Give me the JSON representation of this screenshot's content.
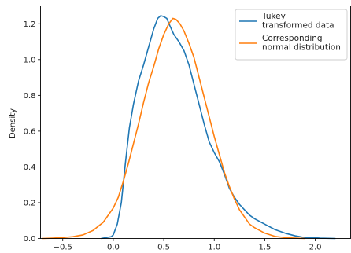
{
  "chart_data": {
    "type": "line",
    "title": "",
    "xlabel": "",
    "ylabel": "Density",
    "xlim": [
      -0.72,
      2.35
    ],
    "ylim": [
      0,
      1.3
    ],
    "xticks": [
      -0.5,
      0.0,
      0.5,
      1.0,
      1.5,
      2.0
    ],
    "xtick_labels": [
      "−0.5",
      "0.0",
      "0.5",
      "1.0",
      "1.5",
      "2.0"
    ],
    "yticks": [
      0.0,
      0.2,
      0.4,
      0.6,
      0.8,
      1.0,
      1.2
    ],
    "ytick_labels": [
      "0.0",
      "0.2",
      "0.4",
      "0.6",
      "0.8",
      "1.0",
      "1.2"
    ],
    "grid": false,
    "legend_position": "top-right",
    "series": [
      {
        "name": "Tukey\ntransformed data",
        "color": "#1f77b4",
        "points": [
          [
            -0.12,
            0.0
          ],
          [
            -0.02,
            0.01
          ],
          [
            0.0,
            0.02
          ],
          [
            0.04,
            0.08
          ],
          [
            0.08,
            0.2
          ],
          [
            0.12,
            0.42
          ],
          [
            0.16,
            0.62
          ],
          [
            0.2,
            0.75
          ],
          [
            0.25,
            0.88
          ],
          [
            0.3,
            0.97
          ],
          [
            0.35,
            1.07
          ],
          [
            0.4,
            1.17
          ],
          [
            0.44,
            1.23
          ],
          [
            0.47,
            1.245
          ],
          [
            0.5,
            1.24
          ],
          [
            0.53,
            1.23
          ],
          [
            0.56,
            1.19
          ],
          [
            0.6,
            1.14
          ],
          [
            0.65,
            1.1
          ],
          [
            0.7,
            1.05
          ],
          [
            0.75,
            0.97
          ],
          [
            0.8,
            0.86
          ],
          [
            0.85,
            0.75
          ],
          [
            0.9,
            0.64
          ],
          [
            0.95,
            0.54
          ],
          [
            1.0,
            0.48
          ],
          [
            1.05,
            0.43
          ],
          [
            1.1,
            0.36
          ],
          [
            1.15,
            0.28
          ],
          [
            1.2,
            0.23
          ],
          [
            1.25,
            0.19
          ],
          [
            1.3,
            0.16
          ],
          [
            1.35,
            0.13
          ],
          [
            1.4,
            0.11
          ],
          [
            1.5,
            0.08
          ],
          [
            1.6,
            0.05
          ],
          [
            1.7,
            0.03
          ],
          [
            1.8,
            0.015
          ],
          [
            1.9,
            0.005
          ],
          [
            2.0,
            0.004
          ],
          [
            2.05,
            0.002
          ],
          [
            2.2,
            0.0
          ]
        ]
      },
      {
        "name": "Corresponding\nnormal distribution",
        "color": "#ff7f0e",
        "points": [
          [
            -0.7,
            0.0
          ],
          [
            -0.6,
            0.002
          ],
          [
            -0.5,
            0.005
          ],
          [
            -0.4,
            0.01
          ],
          [
            -0.3,
            0.02
          ],
          [
            -0.2,
            0.045
          ],
          [
            -0.1,
            0.09
          ],
          [
            0.0,
            0.17
          ],
          [
            0.05,
            0.23
          ],
          [
            0.1,
            0.32
          ],
          [
            0.15,
            0.42
          ],
          [
            0.2,
            0.53
          ],
          [
            0.25,
            0.64
          ],
          [
            0.3,
            0.76
          ],
          [
            0.35,
            0.87
          ],
          [
            0.4,
            0.96
          ],
          [
            0.45,
            1.06
          ],
          [
            0.5,
            1.14
          ],
          [
            0.55,
            1.2
          ],
          [
            0.59,
            1.23
          ],
          [
            0.62,
            1.225
          ],
          [
            0.66,
            1.2
          ],
          [
            0.7,
            1.16
          ],
          [
            0.75,
            1.09
          ],
          [
            0.8,
            1.01
          ],
          [
            0.85,
            0.9
          ],
          [
            0.9,
            0.79
          ],
          [
            0.95,
            0.68
          ],
          [
            1.0,
            0.57
          ],
          [
            1.05,
            0.47
          ],
          [
            1.1,
            0.37
          ],
          [
            1.15,
            0.29
          ],
          [
            1.2,
            0.22
          ],
          [
            1.25,
            0.16
          ],
          [
            1.3,
            0.12
          ],
          [
            1.35,
            0.08
          ],
          [
            1.4,
            0.06
          ],
          [
            1.5,
            0.03
          ],
          [
            1.6,
            0.012
          ],
          [
            1.7,
            0.005
          ],
          [
            1.8,
            0.002
          ],
          [
            1.9,
            0.0
          ]
        ]
      }
    ]
  }
}
